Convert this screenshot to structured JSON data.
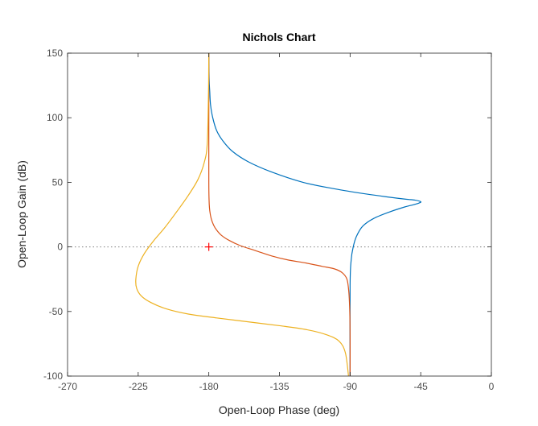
{
  "chart_data": {
    "type": "line",
    "title": "Nichols Chart",
    "xlabel": "Open-Loop Phase (deg)",
    "ylabel": "Open-Loop Gain (dB)",
    "xlim": [
      -270,
      0
    ],
    "ylim": [
      -100,
      150
    ],
    "xticks": [
      -270,
      -225,
      -180,
      -135,
      -90,
      -45,
      0
    ],
    "yticks": [
      -100,
      -50,
      0,
      50,
      100,
      150
    ],
    "grid": false,
    "reference_line": {
      "y": 0,
      "style": "dotted",
      "color": "#7f7f7f"
    },
    "critical_point": {
      "x": -180,
      "y": 0,
      "marker": "+",
      "color": "#ff0000"
    },
    "series": [
      {
        "color": "#0072bd",
        "x": [
          -180,
          -179.8,
          -179.4,
          -178.9,
          -177.5,
          -175,
          -171,
          -165,
          -155,
          -140,
          -120,
          -100,
          -80,
          -65,
          -55,
          -48.5,
          -45,
          -46,
          -50,
          -55,
          -65,
          -75,
          -82,
          -86,
          -88,
          -89.3,
          -90,
          -90
        ],
        "y": [
          150,
          130,
          120,
          110,
          100,
          90,
          82,
          74,
          66,
          58,
          50,
          45,
          41,
          38.5,
          37,
          36.2,
          35,
          34,
          32.5,
          31,
          27,
          22,
          16,
          8,
          0,
          -10,
          -30,
          -100
        ]
      },
      {
        "color": "#d95319",
        "x": [
          -180,
          -180,
          -180,
          -179.8,
          -179.4,
          -178.5,
          -177,
          -175,
          -172,
          -167,
          -160,
          -150,
          -140,
          -130,
          -118,
          -108,
          -100,
          -95,
          -92,
          -90.8,
          -90.2,
          -90,
          -90
        ],
        "y": [
          150,
          100,
          50,
          35,
          28,
          22,
          17,
          13,
          9,
          5,
          1,
          -3,
          -7,
          -10,
          -12.5,
          -15,
          -17,
          -20,
          -25,
          -35,
          -50,
          -70,
          -100
        ]
      },
      {
        "color": "#edb120",
        "x": [
          -180,
          -180.2,
          -181,
          -183,
          -187,
          -193,
          -200,
          -208,
          -215,
          -221,
          -225,
          -226.5,
          -226,
          -223,
          -217,
          -207,
          -193,
          -175,
          -155,
          -135,
          -118,
          -105,
          -97,
          -93,
          -91
        ],
        "y": [
          150,
          120,
          80,
          65,
          52,
          40,
          28,
          15,
          5,
          -5,
          -15,
          -25,
          -32,
          -38,
          -43,
          -48,
          -52,
          -55,
          -58,
          -61,
          -64,
          -68,
          -73,
          -82,
          -100
        ]
      }
    ]
  }
}
